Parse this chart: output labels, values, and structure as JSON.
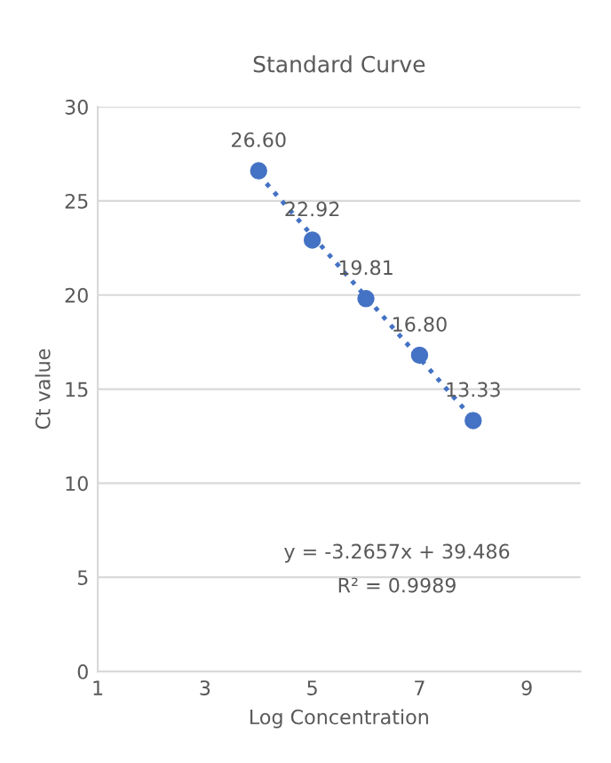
{
  "chart_data": {
    "type": "scatter",
    "title": "Standard Curve",
    "xlabel": "Log Concentration",
    "ylabel": "Ct value",
    "x": [
      4,
      5,
      6,
      7,
      8
    ],
    "series": [
      {
        "color": "#4472c4",
        "values": [
          26.6,
          22.92,
          19.81,
          16.8,
          13.33
        ],
        "value_labels": [
          "26.60",
          "22.92",
          "19.81",
          "16.80",
          "13.33"
        ],
        "marker": "circle"
      },
      {
        "type": "line",
        "color": "#4472c4",
        "x": [
          4,
          8
        ],
        "values": [
          26.4,
          13.4
        ],
        "line_style": "dotted",
        "marker": "none"
      }
    ],
    "xlim": [
      1,
      10
    ],
    "xticks": [
      1,
      3,
      5,
      7,
      9
    ],
    "ylim": [
      0,
      30
    ],
    "yticks": [
      0,
      5,
      10,
      15,
      20,
      25,
      30
    ],
    "grid": "y",
    "legend": false,
    "annotations": [
      "y = -3.2657x + 39.486",
      "R² = 0.9989"
    ]
  }
}
